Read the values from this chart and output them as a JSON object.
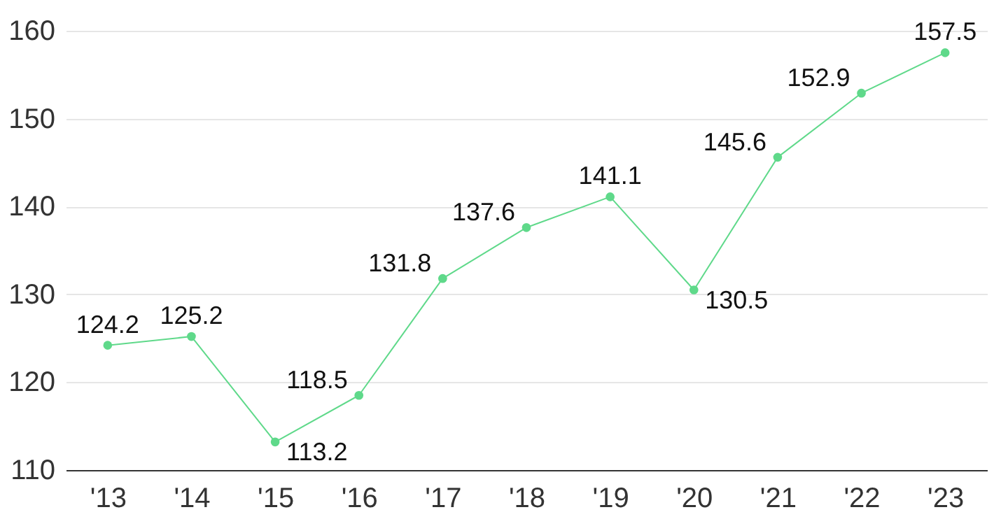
{
  "chart_data": {
    "type": "line",
    "categories": [
      "'13",
      "'14",
      "'15",
      "'16",
      "'17",
      "'18",
      "'19",
      "'20",
      "'21",
      "'22",
      "'23"
    ],
    "series": [
      {
        "color": "#5fd98a",
        "values": [
          124.2,
          125.2,
          113.2,
          118.5,
          131.8,
          137.6,
          141.1,
          130.5,
          145.6,
          152.9,
          157.5
        ]
      }
    ],
    "ylim": [
      110,
      160
    ],
    "yticks": [
      110,
      120,
      130,
      140,
      150,
      160
    ],
    "grid": "y",
    "data_labels": true,
    "marker": "circle",
    "line_style": "solid"
  }
}
